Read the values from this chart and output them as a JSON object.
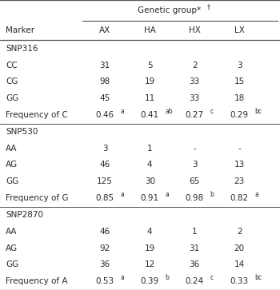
{
  "title_main": "Genetic group*",
  "title_sup": "†",
  "col_headers": [
    "Marker",
    "AX",
    "HA",
    "HX",
    "LX"
  ],
  "rows": [
    {
      "label": "SNP316",
      "vals": [
        "",
        "",
        "",
        ""
      ],
      "type": "section"
    },
    {
      "label": "CC",
      "vals": [
        "31",
        "5",
        "2",
        "3"
      ],
      "type": "data"
    },
    {
      "label": "CG",
      "vals": [
        "98",
        "19",
        "33",
        "15"
      ],
      "type": "data"
    },
    {
      "label": "GG",
      "vals": [
        "45",
        "11",
        "33",
        "18"
      ],
      "type": "data"
    },
    {
      "label": "Frequency of C",
      "vals": [
        {
          "base": "0.46",
          "sup": "a"
        },
        {
          "base": "0.41",
          "sup": "ab"
        },
        {
          "base": "0.27",
          "sup": "c"
        },
        {
          "base": "0.29",
          "sup": "bc"
        }
      ],
      "type": "freq"
    },
    {
      "label": "SNP530",
      "vals": [
        "",
        "",
        "",
        ""
      ],
      "type": "section"
    },
    {
      "label": "AA",
      "vals": [
        "3",
        "1",
        "-",
        "-"
      ],
      "type": "data"
    },
    {
      "label": "AG",
      "vals": [
        "46",
        "4",
        "3",
        "13"
      ],
      "type": "data"
    },
    {
      "label": "GG",
      "vals": [
        "125",
        "30",
        "65",
        "23"
      ],
      "type": "data"
    },
    {
      "label": "Frequency of G",
      "vals": [
        {
          "base": "0.85",
          "sup": "a"
        },
        {
          "base": "0.91",
          "sup": "a"
        },
        {
          "base": "0.98",
          "sup": "b"
        },
        {
          "base": "0.82",
          "sup": "a"
        }
      ],
      "type": "freq"
    },
    {
      "label": "SNP2870",
      "vals": [
        "",
        "",
        "",
        ""
      ],
      "type": "section"
    },
    {
      "label": "AA",
      "vals": [
        "46",
        "4",
        "1",
        "2"
      ],
      "type": "data"
    },
    {
      "label": "AG",
      "vals": [
        "92",
        "19",
        "31",
        "20"
      ],
      "type": "data"
    },
    {
      "label": "GG",
      "vals": [
        "36",
        "12",
        "36",
        "14"
      ],
      "type": "data"
    },
    {
      "label": "Frequency of A",
      "vals": [
        {
          "base": "0.53",
          "sup": "a"
        },
        {
          "base": "0.39",
          "sup": "b"
        },
        {
          "base": "0.24",
          "sup": "c"
        },
        {
          "base": "0.33",
          "sup": "bc"
        }
      ],
      "type": "freq"
    }
  ],
  "font_size": 7.5,
  "sup_font_size": 5.5,
  "text_color": "#2a2a2a",
  "line_color": "#555555"
}
